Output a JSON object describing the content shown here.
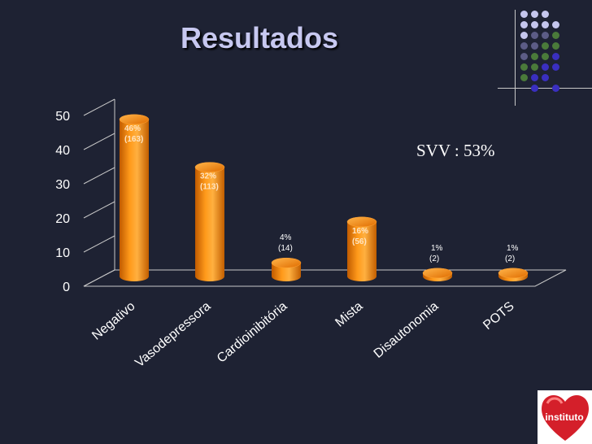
{
  "slide": {
    "title": "Resultados",
    "logo_text": "instituto"
  },
  "colors": {
    "background": "#1e2233",
    "bar": "#ff8c00",
    "title": "#c7c8f0",
    "dot_light": "#c5c6ee",
    "dot_mid": "#5c5c86",
    "dot_green": "#4a7a3a",
    "dot_blue": "#3a2fc0"
  },
  "chart_data": {
    "type": "bar",
    "categories": [
      "Negativo",
      "Vasodepressora",
      "Cardioinibitória",
      "Mista",
      "Disautonomia",
      "POTS"
    ],
    "values": [
      46,
      32,
      4,
      16,
      1,
      1
    ],
    "data_labels": [
      [
        "46%",
        "(163)"
      ],
      [
        "32%",
        "(113)"
      ],
      [
        "4%",
        "(14)"
      ],
      [
        "16%",
        "(56)"
      ],
      [
        "1%",
        "(2)"
      ],
      [
        "1%",
        "(2)"
      ]
    ],
    "yticks": [
      "0",
      "10",
      "20",
      "30",
      "40",
      "50"
    ],
    "ylim": [
      0,
      50
    ],
    "annotation": "SVV : 53%",
    "grid": true
  }
}
